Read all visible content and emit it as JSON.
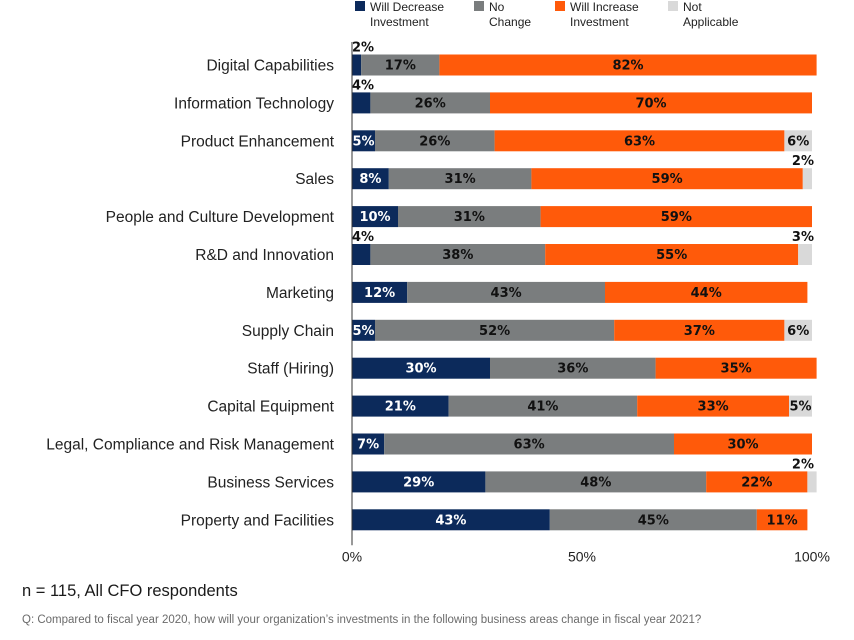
{
  "colors": {
    "decrease": "#0c2a5b",
    "no_change": "#7a7d7e",
    "increase": "#ff5a0a",
    "not_applicable": "#d9d9d9",
    "axis": "#333333",
    "background": "#ffffff"
  },
  "chart_data": {
    "type": "bar",
    "orientation": "horizontal",
    "stacked": true,
    "xlim": [
      0,
      100
    ],
    "x_ticks": [
      "0%",
      "50%",
      "100%"
    ],
    "x_tick_values": [
      0,
      50,
      100
    ],
    "legend_position": "top",
    "grid": false,
    "categories": [
      "Digital Capabilities",
      "Information Technology",
      "Product Enhancement",
      "Sales",
      "People and Culture Development",
      "R&D and Innovation",
      "Marketing",
      "Supply Chain",
      "Staff (Hiring)",
      "Capital Equipment",
      "Legal, Compliance and Risk Management",
      "Business Services",
      "Property and Facilities"
    ],
    "series": [
      {
        "key": "decrease",
        "name": "Will Decrease Investment",
        "name_lines": [
          "Will Decrease",
          "Investment"
        ],
        "values": [
          2,
          4,
          5,
          8,
          10,
          4,
          12,
          5,
          30,
          21,
          7,
          29,
          43
        ]
      },
      {
        "key": "no_change",
        "name": "No Change",
        "name_lines": [
          "No",
          "Change"
        ],
        "values": [
          17,
          26,
          26,
          31,
          31,
          38,
          43,
          52,
          36,
          41,
          63,
          48,
          45
        ]
      },
      {
        "key": "increase",
        "name": "Will Increase Investment",
        "name_lines": [
          "Will Increase",
          "Investment"
        ],
        "values": [
          82,
          70,
          63,
          59,
          59,
          55,
          44,
          37,
          35,
          33,
          30,
          22,
          11
        ]
      },
      {
        "key": "not_applicable",
        "name": "Not Applicable",
        "name_lines": [
          "Not",
          "Applicable"
        ],
        "values": [
          0,
          0,
          6,
          2,
          0,
          3,
          0,
          6,
          0,
          5,
          0,
          2,
          0
        ]
      }
    ]
  },
  "notes": {
    "sample": "n = 115, All CFO respondents",
    "question": "Q: Compared to fiscal year 2020, how will your organization’s investments in the following business areas change in fiscal year 2021?"
  }
}
